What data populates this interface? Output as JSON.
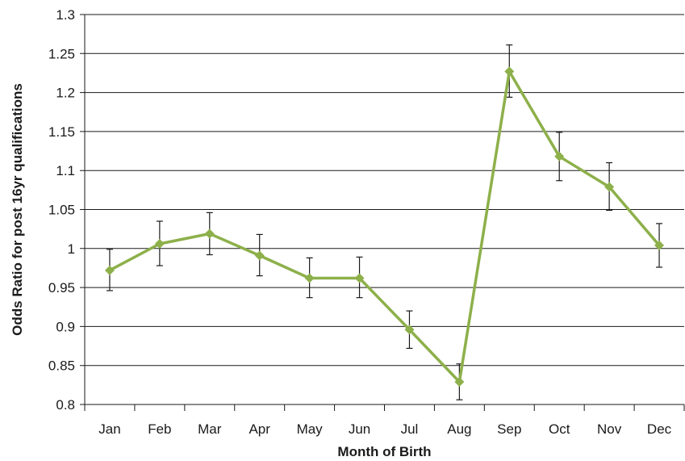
{
  "chart_data": {
    "type": "line",
    "title": "",
    "xlabel": "Month of Birth",
    "ylabel": "Odds Ratio for post 16yr qualifications",
    "categories": [
      "Jan",
      "Feb",
      "Mar",
      "Apr",
      "May",
      "Jun",
      "Jul",
      "Aug",
      "Sep",
      "Oct",
      "Nov",
      "Dec"
    ],
    "series": [
      {
        "values": [
          0.972,
          1.006,
          1.019,
          0.991,
          0.962,
          0.962,
          0.896,
          0.829,
          1.227,
          1.118,
          1.079,
          1.004
        ],
        "error_low": [
          0.946,
          0.978,
          0.992,
          0.965,
          0.937,
          0.937,
          0.872,
          0.806,
          1.194,
          1.087,
          1.049,
          0.976
        ],
        "error_high": [
          0.999,
          1.035,
          1.046,
          1.018,
          0.988,
          0.989,
          0.92,
          0.852,
          1.261,
          1.149,
          1.11,
          1.032
        ],
        "color": "#8db04a",
        "marker": "diamond"
      }
    ],
    "ylim": [
      0.8,
      1.3
    ],
    "yticks": [
      "0.8",
      "0.85",
      "0.9",
      "0.95",
      "1",
      "1.05",
      "1.1",
      "1.15",
      "1.2",
      "1.25",
      "1.3"
    ],
    "grid": true,
    "legend": "none"
  }
}
